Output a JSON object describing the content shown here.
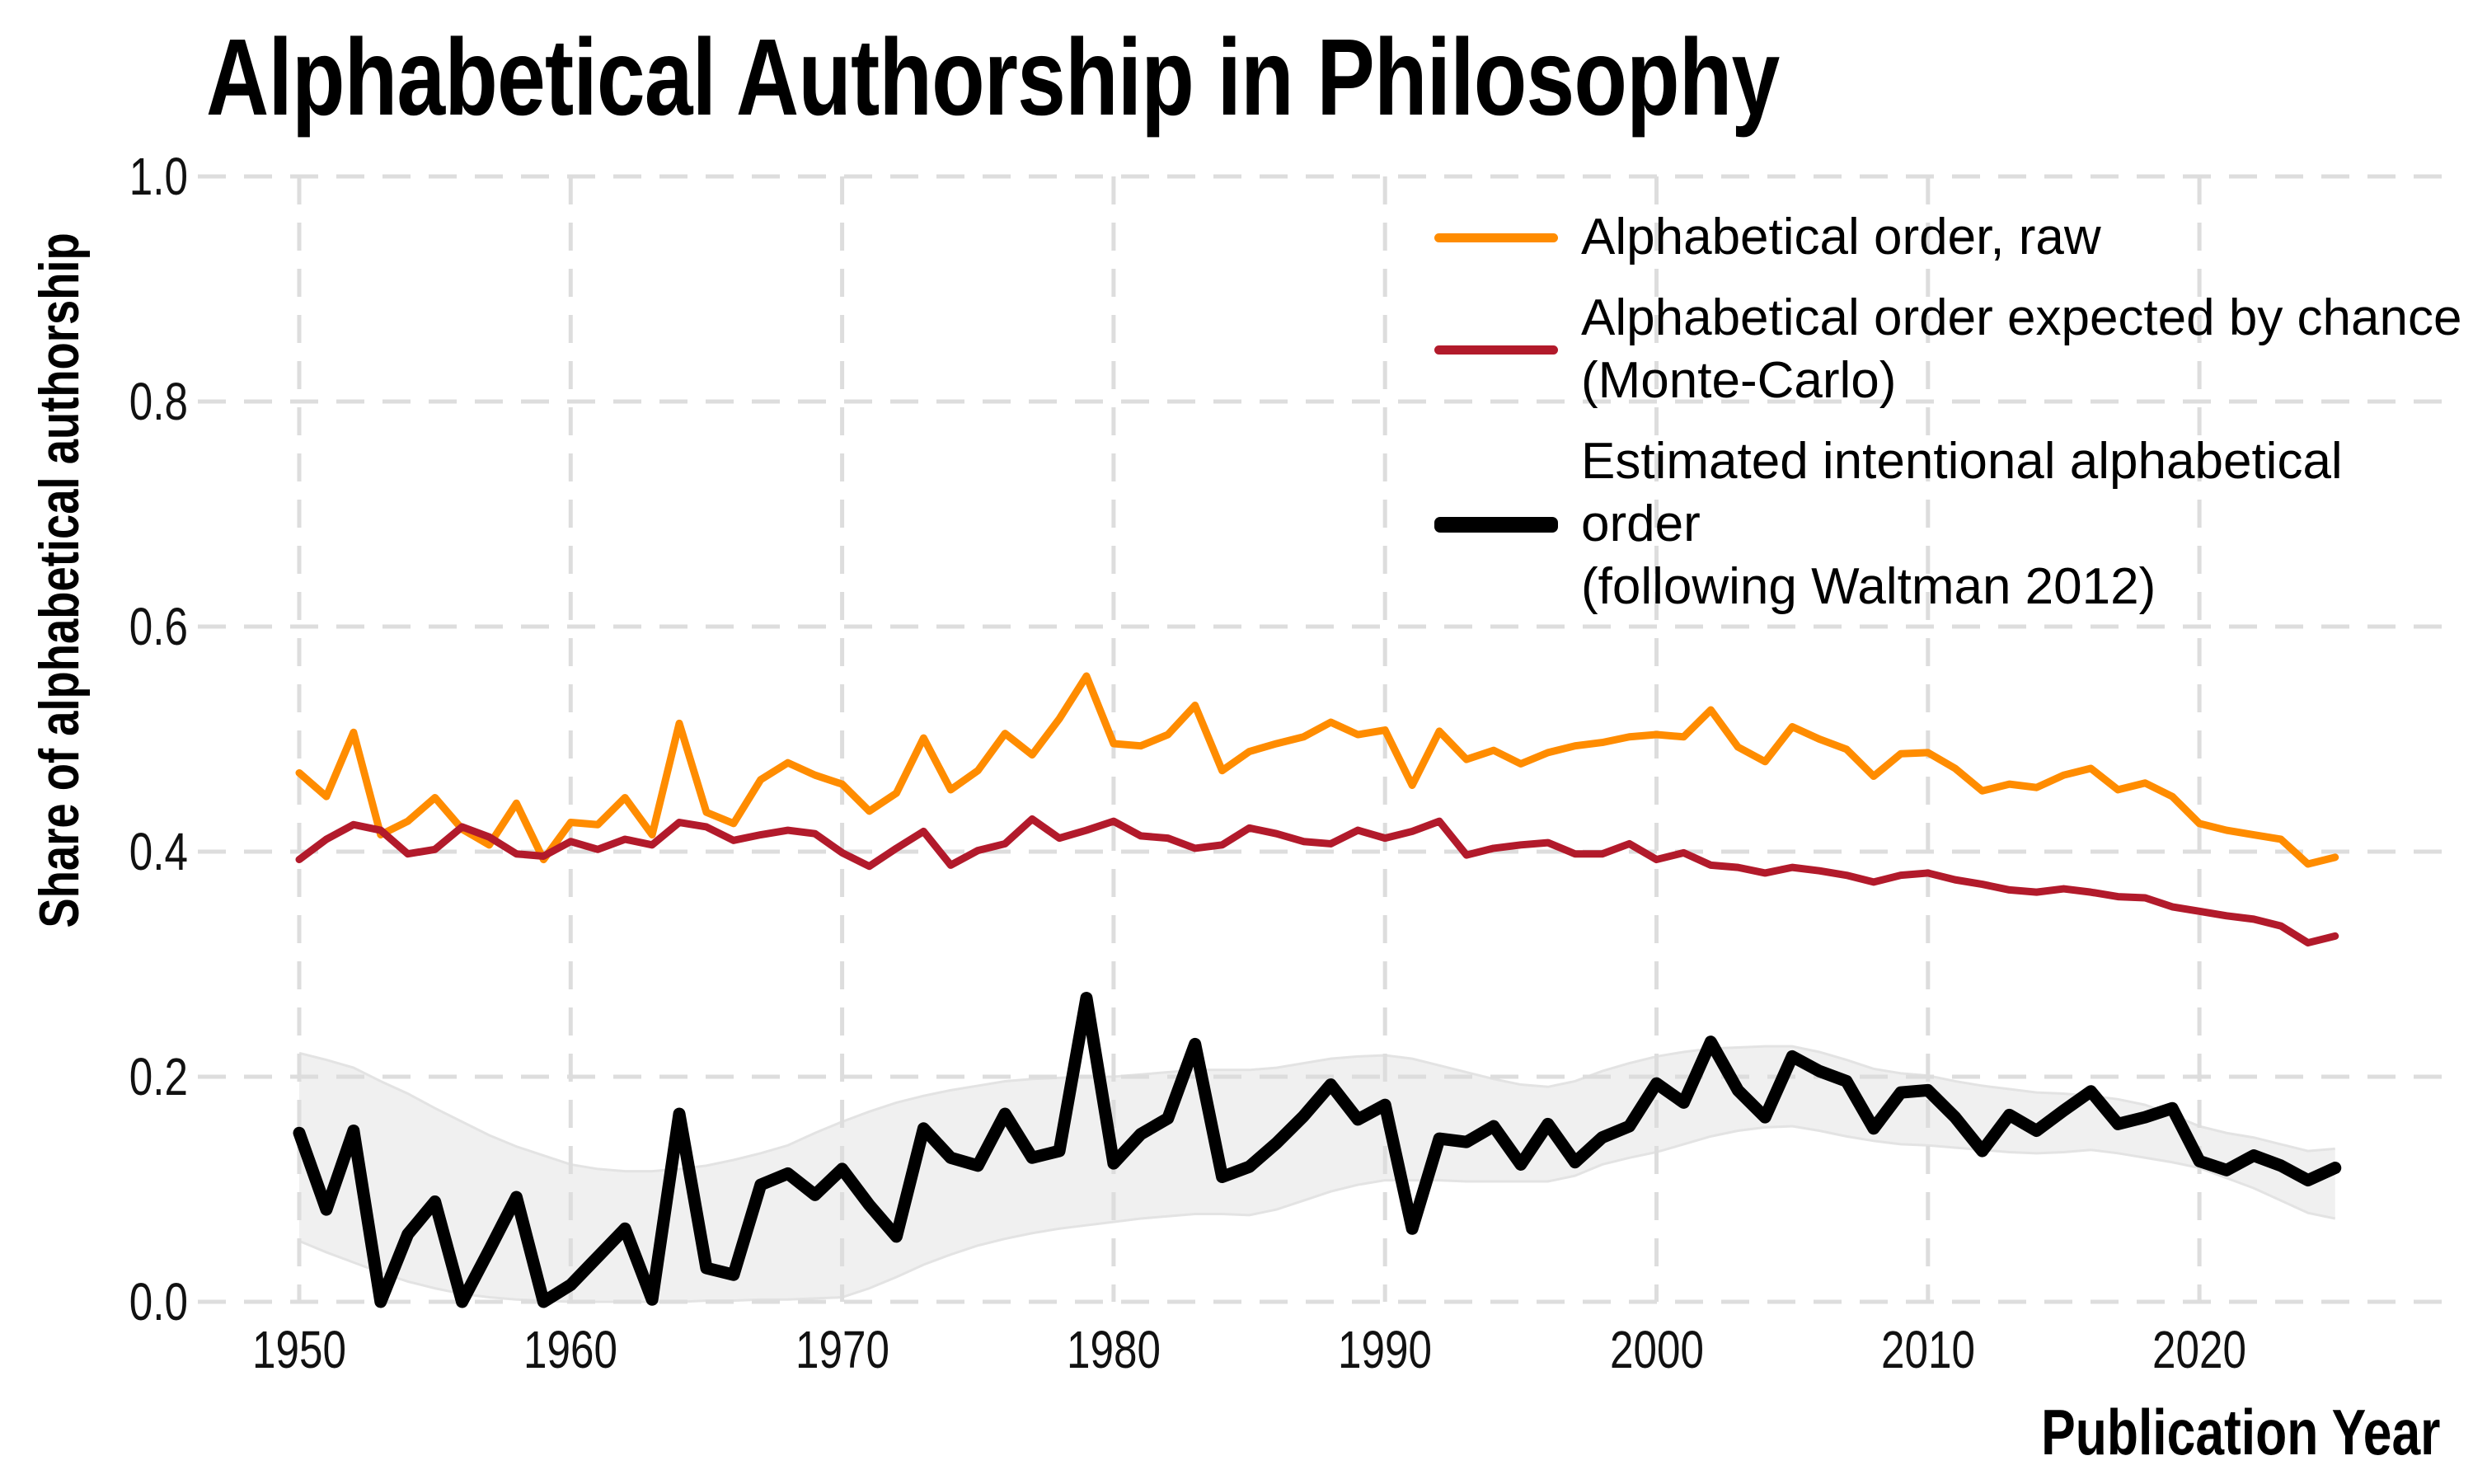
{
  "title": "Alphabetical Authorship in Philosophy",
  "axes": {
    "y": {
      "label": "Share of alphabetical authorship",
      "ticks": [
        "1.0",
        "0.8",
        "0.6",
        "0.4",
        "0.2",
        "0.0"
      ]
    },
    "x": {
      "label": "Publication Year",
      "ticks": [
        "1950",
        "1960",
        "1970",
        "1980",
        "1990",
        "2000",
        "2010",
        "2020"
      ]
    }
  },
  "legend": {
    "items": [
      {
        "color": "#FF8C00",
        "thickness": "thin",
        "lines": [
          "Alphabetical order, raw",
          ""
        ]
      },
      {
        "color": "#B21A2B",
        "thickness": "thin",
        "lines": [
          "Alphabetical order expected by chance",
          "(Monte-Carlo)"
        ]
      },
      {
        "color": "#000000",
        "thickness": "thick",
        "lines": [
          "Estimated intentional alphabetical order",
          "(following Waltman 2012)"
        ]
      }
    ]
  },
  "chart_data": {
    "type": "line",
    "title": "Alphabetical Authorship in Philosophy",
    "xlabel": "Publication Year",
    "ylabel": "Share of alphabetical authorship",
    "xlim": [
      1946,
      2029
    ],
    "ylim": [
      0.0,
      1.0
    ],
    "x_ticks": [
      1950,
      1960,
      1970,
      1980,
      1990,
      2000,
      2010,
      2020
    ],
    "y_ticks": [
      0.0,
      0.2,
      0.4,
      0.6,
      0.8,
      1.0
    ],
    "grid": "dashed",
    "legend_position": "upper right",
    "years": [
      1950,
      1951,
      1952,
      1953,
      1954,
      1955,
      1956,
      1957,
      1958,
      1959,
      1960,
      1961,
      1962,
      1963,
      1964,
      1965,
      1966,
      1967,
      1968,
      1969,
      1970,
      1971,
      1972,
      1973,
      1974,
      1975,
      1976,
      1977,
      1978,
      1979,
      1980,
      1981,
      1982,
      1983,
      1984,
      1985,
      1986,
      1987,
      1988,
      1989,
      1990,
      1991,
      1992,
      1993,
      1994,
      1995,
      1996,
      1997,
      1998,
      1999,
      2000,
      2001,
      2002,
      2003,
      2004,
      2005,
      2006,
      2007,
      2008,
      2009,
      2010,
      2011,
      2012,
      2013,
      2014,
      2015,
      2016,
      2017,
      2018,
      2019,
      2020,
      2021,
      2022,
      2023,
      2024,
      2025
    ],
    "series": [
      {
        "name": "Alphabetical order, raw",
        "color": "#FF8C00",
        "stroke_width": 9,
        "values": [
          0.47,
          0.449,
          0.506,
          0.415,
          0.427,
          0.448,
          0.42,
          0.406,
          0.443,
          0.393,
          0.426,
          0.424,
          0.448,
          0.415,
          0.514,
          0.435,
          0.425,
          0.464,
          0.479,
          0.468,
          0.46,
          0.436,
          0.452,
          0.501,
          0.455,
          0.472,
          0.505,
          0.486,
          0.518,
          0.556,
          0.496,
          0.494,
          0.504,
          0.53,
          0.472,
          0.489,
          0.496,
          0.502,
          0.515,
          0.504,
          0.508,
          0.459,
          0.507,
          0.482,
          0.49,
          0.478,
          0.488,
          0.494,
          0.497,
          0.502,
          0.504,
          0.502,
          0.526,
          0.493,
          0.48,
          0.511,
          0.5,
          0.491,
          0.467,
          0.487,
          0.488,
          0.474,
          0.454,
          0.46,
          0.457,
          0.468,
          0.474,
          0.455,
          0.461,
          0.449,
          0.425,
          0.419,
          0.415,
          0.411,
          0.389,
          0.395
        ]
      },
      {
        "name": "Alphabetical order expected by chance (Monte-Carlo)",
        "color": "#B21A2B",
        "stroke_width": 9,
        "values": [
          0.393,
          0.411,
          0.424,
          0.419,
          0.398,
          0.402,
          0.422,
          0.413,
          0.398,
          0.396,
          0.409,
          0.402,
          0.411,
          0.406,
          0.426,
          0.422,
          0.41,
          0.415,
          0.419,
          0.416,
          0.399,
          0.387,
          0.403,
          0.418,
          0.388,
          0.401,
          0.407,
          0.429,
          0.412,
          0.419,
          0.427,
          0.414,
          0.412,
          0.403,
          0.406,
          0.421,
          0.416,
          0.409,
          0.407,
          0.419,
          0.412,
          0.418,
          0.427,
          0.397,
          0.403,
          0.406,
          0.408,
          0.398,
          0.398,
          0.407,
          0.393,
          0.399,
          0.388,
          0.386,
          0.381,
          0.386,
          0.383,
          0.379,
          0.373,
          0.379,
          0.381,
          0.375,
          0.371,
          0.366,
          0.364,
          0.367,
          0.364,
          0.36,
          0.359,
          0.351,
          0.347,
          0.343,
          0.34,
          0.334,
          0.319,
          0.325
        ]
      },
      {
        "name": "Estimated intentional alphabetical order (following Waltman 2012)",
        "color": "#000000",
        "stroke_width": 15,
        "values": [
          0.15,
          0.082,
          0.152,
          0.0,
          0.06,
          0.089,
          0.0,
          0.046,
          0.093,
          0.0,
          0.015,
          0.04,
          0.065,
          0.002,
          0.167,
          0.03,
          0.024,
          0.104,
          0.114,
          0.095,
          0.118,
          0.086,
          0.058,
          0.154,
          0.128,
          0.121,
          0.167,
          0.128,
          0.134,
          0.27,
          0.123,
          0.149,
          0.163,
          0.229,
          0.111,
          0.12,
          0.141,
          0.165,
          0.193,
          0.162,
          0.175,
          0.065,
          0.145,
          0.142,
          0.156,
          0.122,
          0.158,
          0.124,
          0.146,
          0.156,
          0.194,
          0.177,
          0.231,
          0.188,
          0.164,
          0.218,
          0.205,
          0.196,
          0.154,
          0.186,
          0.188,
          0.164,
          0.134,
          0.166,
          0.152,
          0.17,
          0.187,
          0.158,
          0.164,
          0.172,
          0.125,
          0.117,
          0.13,
          0.121,
          0.108,
          0.119
        ],
        "band": {
          "fill": "#F0F0F0",
          "edge": "#E3E3E3",
          "top": [
            0.221,
            0.215,
            0.208,
            0.196,
            0.185,
            0.172,
            0.16,
            0.148,
            0.138,
            0.13,
            0.122,
            0.118,
            0.116,
            0.116,
            0.118,
            0.121,
            0.126,
            0.132,
            0.139,
            0.15,
            0.16,
            0.169,
            0.177,
            0.183,
            0.188,
            0.192,
            0.196,
            0.198,
            0.199,
            0.2,
            0.2,
            0.202,
            0.204,
            0.206,
            0.206,
            0.206,
            0.208,
            0.212,
            0.216,
            0.218,
            0.219,
            0.216,
            0.21,
            0.204,
            0.198,
            0.193,
            0.191,
            0.196,
            0.205,
            0.212,
            0.218,
            0.222,
            0.225,
            0.226,
            0.227,
            0.227,
            0.222,
            0.215,
            0.207,
            0.203,
            0.201,
            0.196,
            0.192,
            0.189,
            0.186,
            0.185,
            0.183,
            0.18,
            0.175,
            0.166,
            0.156,
            0.15,
            0.146,
            0.14,
            0.134,
            0.136
          ],
          "bottom": [
            0.054,
            0.044,
            0.035,
            0.026,
            0.018,
            0.012,
            0.007,
            0.004,
            0.002,
            0.001,
            0.0,
            0.0,
            0.0,
            0.0,
            0.0,
            0.001,
            0.001,
            0.002,
            0.002,
            0.003,
            0.004,
            0.012,
            0.022,
            0.033,
            0.042,
            0.05,
            0.056,
            0.061,
            0.065,
            0.068,
            0.071,
            0.074,
            0.076,
            0.078,
            0.078,
            0.077,
            0.082,
            0.09,
            0.098,
            0.104,
            0.108,
            0.108,
            0.108,
            0.107,
            0.107,
            0.107,
            0.107,
            0.112,
            0.122,
            0.128,
            0.133,
            0.14,
            0.147,
            0.152,
            0.155,
            0.156,
            0.152,
            0.147,
            0.143,
            0.14,
            0.139,
            0.137,
            0.135,
            0.133,
            0.132,
            0.133,
            0.135,
            0.132,
            0.128,
            0.124,
            0.119,
            0.11,
            0.101,
            0.09,
            0.079,
            0.074
          ]
        }
      }
    ],
    "style": {
      "gridline_color": "#DDDDDD",
      "background": "#FFFFFF"
    }
  }
}
